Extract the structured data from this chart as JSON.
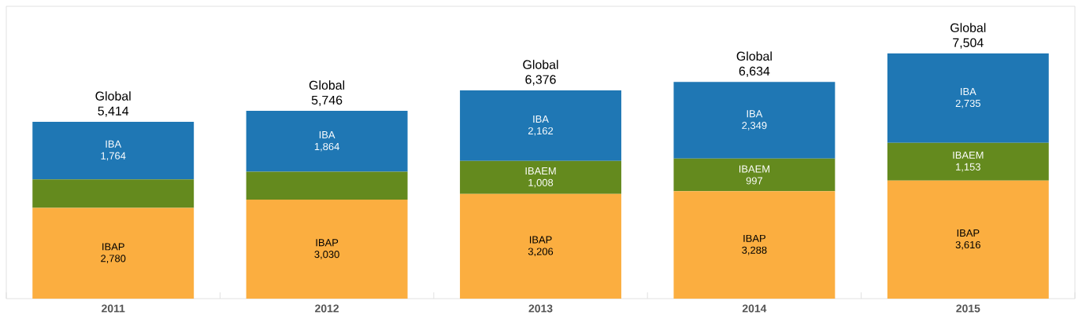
{
  "chart_data": {
    "type": "bar",
    "stacked": true,
    "categories": [
      "2011",
      "2012",
      "2013",
      "2014",
      "2015"
    ],
    "series": [
      {
        "name": "IBAP",
        "color": "#fbae40",
        "values": [
          2780,
          3030,
          3206,
          3288,
          3616
        ],
        "value_labels": [
          "2,780",
          "3,030",
          "3,206",
          "3,288",
          "3,616"
        ]
      },
      {
        "name": "IBAEM",
        "color": "#648a1e",
        "values": [
          870,
          852,
          1008,
          997,
          1153
        ],
        "value_labels": [
          null,
          null,
          "1,008",
          "997",
          "1,153"
        ]
      },
      {
        "name": "IBA",
        "color": "#1f77b4",
        "values": [
          1764,
          1864,
          2162,
          2349,
          2735
        ],
        "value_labels": [
          "1,764",
          "1,864",
          "2,162",
          "2,349",
          "2,735"
        ]
      }
    ],
    "totals": [
      "Global 5,414",
      "Global 5,746",
      "Global 6,376",
      "Global 6,634",
      "Global 7,504"
    ]
  }
}
